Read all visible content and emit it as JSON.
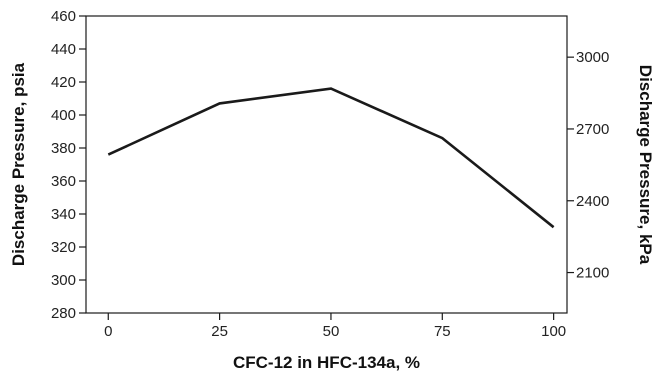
{
  "chart_data": {
    "type": "line",
    "xlabel": "CFC-12 in HFC-134a, %",
    "ylabel": "Discharge Pressure, psia",
    "y2label": "Discharge Pressure, kPa",
    "x": [
      0,
      25,
      50,
      75,
      100
    ],
    "series": [
      {
        "values": [
          376,
          407,
          416,
          386,
          332
        ]
      }
    ],
    "xlim": [
      -5,
      103
    ],
    "ylim": [
      280,
      460
    ],
    "y2lim": [
      1931,
      3172
    ],
    "x_ticks": [
      0,
      25,
      50,
      75,
      100
    ],
    "y_ticks": [
      280,
      300,
      320,
      340,
      360,
      380,
      400,
      420,
      440,
      460
    ],
    "y2_ticks": [
      2100,
      2400,
      2700,
      3000
    ],
    "grid": false,
    "colors": {
      "line": "#1a1a1a",
      "axis": "#1a1a1a"
    }
  }
}
